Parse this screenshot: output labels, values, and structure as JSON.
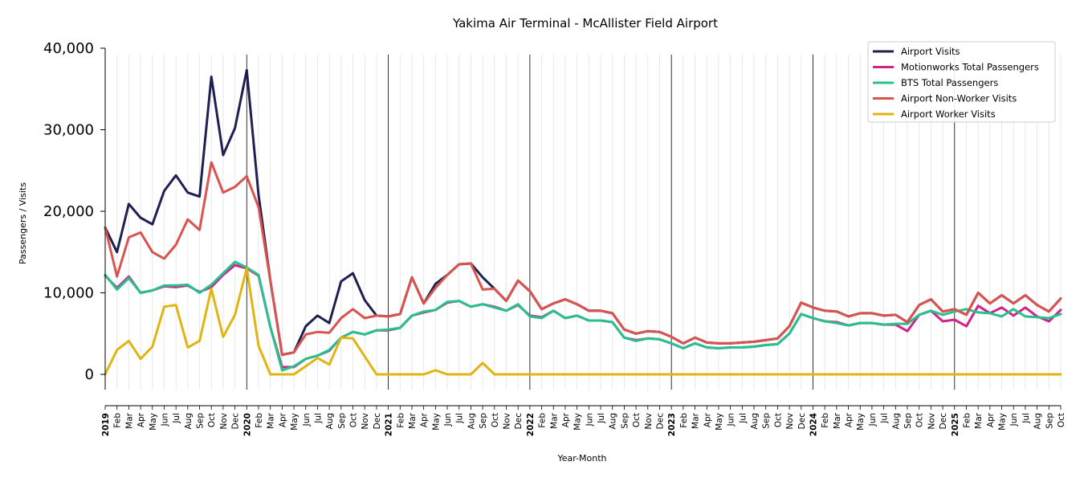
{
  "chart_data": {
    "type": "line",
    "title": "Yakima Air Terminal - McAllister Field Airport",
    "xlabel": "Year-Month",
    "ylabel": "Passengers / Visits",
    "ylim": [
      -2000,
      40000
    ],
    "yticks": [
      0,
      10000,
      20000,
      30000,
      40000
    ],
    "ytick_labels": [
      "0",
      "10,000",
      "20,000",
      "30,000",
      "40,000"
    ],
    "grid": "vertical monthly lines",
    "legend_position": "top-right",
    "x_start": "2019-01",
    "x_end": "2025-10",
    "x_tick_labels": [
      "2019",
      "Feb",
      "Mar",
      "Apr",
      "May",
      "Jun",
      "Jul",
      "Aug",
      "Sep",
      "Oct",
      "Nov",
      "Dec",
      "2020",
      "Feb",
      "Mar",
      "Apr",
      "May",
      "Jun",
      "Jul",
      "Aug",
      "Sep",
      "Oct",
      "Nov",
      "Dec",
      "2021",
      "Feb",
      "Mar",
      "Apr",
      "May",
      "Jun",
      "Jul",
      "Aug",
      "Sep",
      "Oct",
      "Nov",
      "Dec",
      "2022",
      "Feb",
      "Mar",
      "Apr",
      "May",
      "Jun",
      "Jul",
      "Aug",
      "Sep",
      "Oct",
      "Nov",
      "Dec",
      "2023",
      "Feb",
      "Mar",
      "Apr",
      "May",
      "Jun",
      "Jul",
      "Aug",
      "Sep",
      "Oct",
      "Nov",
      "Dec",
      "2024",
      "Feb",
      "Mar",
      "Apr",
      "May",
      "Jun",
      "Jul",
      "Aug",
      "Sep",
      "Oct",
      "Nov",
      "Dec",
      "2025",
      "Feb",
      "Mar",
      "Apr",
      "May",
      "Jun",
      "Jul",
      "Aug",
      "Sep",
      "Oct"
    ],
    "series": [
      {
        "name": "Airport Visits",
        "color": "#1f2052",
        "values": [
          18000,
          15000,
          20900,
          19200,
          18400,
          22500,
          24400,
          22300,
          21800,
          36500,
          26900,
          30200,
          37300,
          22000,
          11500,
          2400,
          2700,
          5900,
          7200,
          6300,
          11400,
          12400,
          9100,
          7200,
          7100,
          7400,
          11900,
          8700,
          11100,
          12200,
          13500,
          13600,
          11900,
          10500,
          9000,
          11500,
          10200,
          8000,
          8700,
          9200,
          8600,
          7800,
          7800,
          7500,
          5500,
          5000,
          5300,
          5200,
          4600,
          3800,
          4500,
          3900,
          3800,
          3800,
          3900,
          4000,
          4200,
          4400,
          5900,
          8800,
          8200,
          7800,
          7700,
          7100,
          7500,
          7500,
          7200,
          7300,
          6400,
          8500,
          9200,
          7700,
          8000,
          7300,
          10000,
          8700,
          9700,
          8700,
          9700,
          8500,
          7700,
          9300
        ]
      },
      {
        "name": "Motionworks Total Passengers",
        "color": "#d0238c",
        "values": [
          12100,
          10600,
          12000,
          10000,
          10300,
          10800,
          10700,
          10900,
          10100,
          10700,
          12200,
          13400,
          13000,
          12100,
          5800,
          900,
          900,
          1900,
          2300,
          2900,
          4500,
          5200,
          4900,
          5400,
          5400,
          5700,
          7200,
          7600,
          7900,
          8800,
          9000,
          8300,
          8600,
          8300,
          7800,
          8500,
          7200,
          7000,
          7800,
          6900,
          7200,
          6600,
          6600,
          6400,
          4500,
          4200,
          4400,
          4300,
          3800,
          3200,
          3800,
          3300,
          3200,
          3300,
          3300,
          3400,
          3600,
          3700,
          5000,
          7400,
          6900,
          6500,
          6400,
          6000,
          6300,
          6300,
          6100,
          6100,
          5300,
          7300,
          7800,
          6500,
          6700,
          5900,
          8400,
          7500,
          8200,
          7200,
          8200,
          7100,
          6500,
          7900
        ]
      },
      {
        "name": "BTS Total Passengers",
        "color": "#27c08e",
        "values": [
          12200,
          10400,
          11800,
          10000,
          10300,
          10900,
          10900,
          11000,
          10000,
          11000,
          12400,
          13800,
          13100,
          12200,
          5800,
          500,
          1000,
          1900,
          2300,
          3000,
          4500,
          5200,
          4900,
          5400,
          5500,
          5700,
          7200,
          7700,
          7900,
          8900,
          9000,
          8300,
          8600,
          8200,
          7800,
          8600,
          7100,
          6900,
          7800,
          6900,
          7200,
          6600,
          6600,
          6400,
          4500,
          4100,
          4400,
          4300,
          3800,
          3200,
          3800,
          3300,
          3200,
          3300,
          3300,
          3400,
          3600,
          3700,
          5000,
          7400,
          6900,
          6500,
          6300,
          6000,
          6300,
          6300,
          6100,
          6200,
          6200,
          7300,
          7800,
          7300,
          7700,
          8000,
          7600,
          7500,
          7100,
          8000,
          7100,
          7000,
          6900,
          7400
        ]
      },
      {
        "name": "Airport Non-Worker Visits",
        "color": "#d9534f",
        "values": [
          18000,
          12000,
          16800,
          17400,
          15000,
          14200,
          15900,
          19000,
          17700,
          26000,
          22300,
          23000,
          24300,
          20500,
          11500,
          2400,
          2700,
          4900,
          5200,
          5100,
          6900,
          8000,
          6900,
          7200,
          7100,
          7400,
          11900,
          8700,
          10600,
          12200,
          13500,
          13600,
          10400,
          10500,
          9000,
          11500,
          10200,
          8000,
          8700,
          9200,
          8600,
          7800,
          7800,
          7500,
          5500,
          5000,
          5300,
          5200,
          4600,
          3800,
          4500,
          3900,
          3800,
          3800,
          3900,
          4000,
          4200,
          4400,
          5900,
          8800,
          8200,
          7800,
          7700,
          7100,
          7500,
          7500,
          7200,
          7300,
          6400,
          8500,
          9200,
          7700,
          8000,
          7300,
          10000,
          8700,
          9700,
          8700,
          9700,
          8500,
          7700,
          9300
        ]
      },
      {
        "name": "Airport Worker Visits",
        "color": "#e0b411",
        "values": [
          0,
          3000,
          4100,
          1900,
          3400,
          8300,
          8500,
          3300,
          4100,
          10500,
          4600,
          7300,
          13000,
          3500,
          0,
          0,
          0,
          1000,
          2000,
          1200,
          4500,
          4400,
          2200,
          0,
          0,
          0,
          0,
          0,
          500,
          0,
          0,
          0,
          1400,
          0,
          0,
          0,
          0,
          0,
          0,
          0,
          0,
          0,
          0,
          0,
          0,
          0,
          0,
          0,
          0,
          0,
          0,
          0,
          0,
          0,
          0,
          0,
          0,
          0,
          0,
          0,
          0,
          0,
          0,
          0,
          0,
          0,
          0,
          0,
          0,
          0,
          0,
          0,
          0,
          0,
          0,
          0,
          0,
          0,
          0,
          0,
          0,
          0
        ]
      }
    ]
  }
}
